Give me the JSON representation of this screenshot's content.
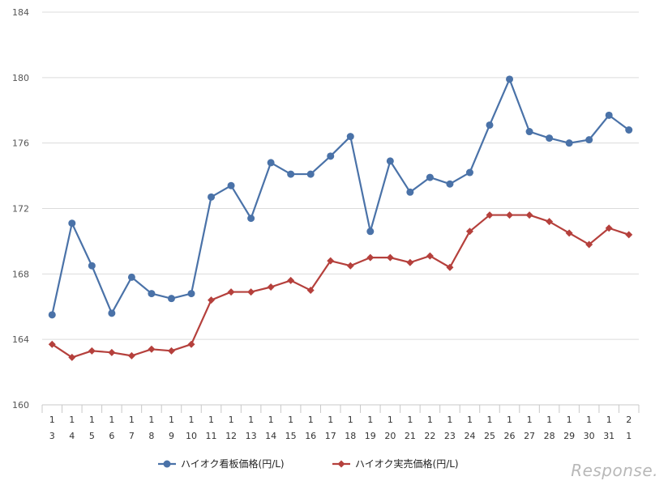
{
  "chart_data": {
    "type": "line",
    "title": "",
    "xlabel": "",
    "ylabel": "",
    "ylim": [
      160,
      184
    ],
    "yticks": [
      160,
      164,
      168,
      172,
      176,
      180,
      184
    ],
    "grid": true,
    "legend": "bottom-center",
    "categories": [
      [
        "1",
        "3"
      ],
      [
        "1",
        "4"
      ],
      [
        "1",
        "5"
      ],
      [
        "1",
        "6"
      ],
      [
        "1",
        "7"
      ],
      [
        "1",
        "8"
      ],
      [
        "1",
        "9"
      ],
      [
        "1",
        "10"
      ],
      [
        "1",
        "11"
      ],
      [
        "1",
        "12"
      ],
      [
        "1",
        "13"
      ],
      [
        "1",
        "14"
      ],
      [
        "1",
        "15"
      ],
      [
        "1",
        "16"
      ],
      [
        "1",
        "17"
      ],
      [
        "1",
        "18"
      ],
      [
        "1",
        "19"
      ],
      [
        "1",
        "20"
      ],
      [
        "1",
        "21"
      ],
      [
        "1",
        "22"
      ],
      [
        "1",
        "23"
      ],
      [
        "1",
        "24"
      ],
      [
        "1",
        "25"
      ],
      [
        "1",
        "26"
      ],
      [
        "1",
        "27"
      ],
      [
        "1",
        "28"
      ],
      [
        "1",
        "29"
      ],
      [
        "1",
        "30"
      ],
      [
        "1",
        "31"
      ],
      [
        "2",
        "1"
      ]
    ],
    "series": [
      {
        "name": "ハイオク看板価格(円/L)",
        "color": "#4a72a8",
        "marker": "circle",
        "values": [
          165.5,
          171.1,
          168.5,
          165.6,
          167.8,
          166.8,
          166.5,
          166.8,
          172.7,
          173.4,
          171.4,
          174.8,
          174.1,
          174.1,
          175.2,
          176.4,
          170.6,
          174.9,
          173.0,
          173.9,
          173.5,
          174.2,
          177.1,
          179.9,
          176.7,
          176.3,
          176.0,
          176.2,
          177.7,
          176.8
        ]
      },
      {
        "name": "ハイオク実売価格(円/L)",
        "color": "#b5403c",
        "marker": "diamond",
        "values": [
          163.7,
          162.9,
          163.3,
          163.2,
          163.0,
          163.4,
          163.3,
          163.7,
          166.4,
          166.9,
          166.9,
          167.2,
          167.6,
          167.0,
          168.8,
          168.5,
          169.0,
          169.0,
          168.7,
          169.1,
          168.4,
          170.6,
          171.6,
          171.6,
          171.6,
          171.2,
          170.5,
          169.8,
          170.8,
          170.4
        ]
      }
    ]
  },
  "watermark": "Response."
}
